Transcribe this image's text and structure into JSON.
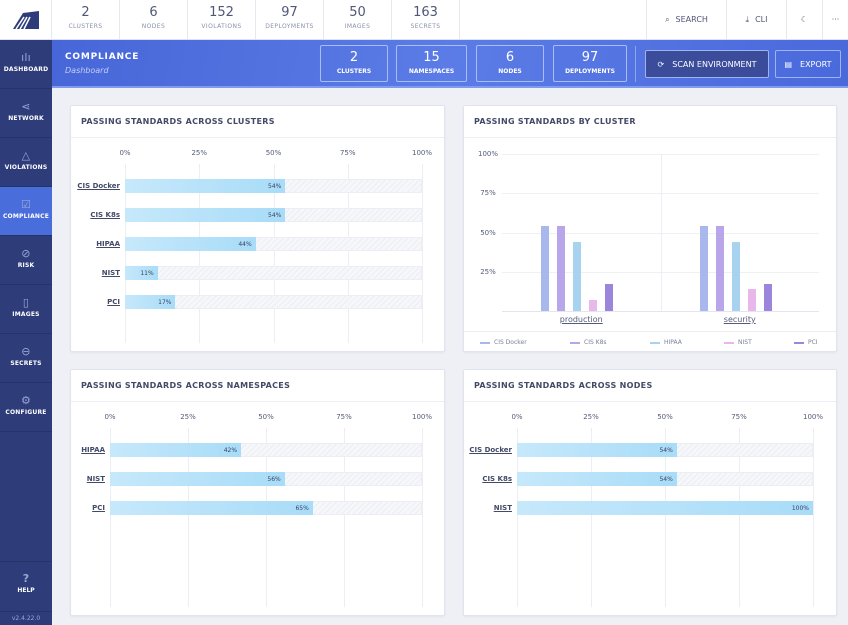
{
  "topbar": {
    "stats": [
      {
        "n": "2",
        "l": "CLUSTERS"
      },
      {
        "n": "6",
        "l": "NODES"
      },
      {
        "n": "152",
        "l": "VIOLATIONS"
      },
      {
        "n": "97",
        "l": "DEPLOYMENTS"
      },
      {
        "n": "50",
        "l": "IMAGES"
      },
      {
        "n": "163",
        "l": "SECRETS"
      }
    ],
    "search": "SEARCH",
    "cli": "CLI"
  },
  "sidebar": {
    "items": [
      {
        "label": "DASHBOARD",
        "icon": "bar-chart-icon"
      },
      {
        "label": "NETWORK",
        "icon": "share-icon"
      },
      {
        "label": "VIOLATIONS",
        "icon": "alert-triangle-icon"
      },
      {
        "label": "COMPLIANCE",
        "icon": "check-square-icon",
        "active": true
      },
      {
        "label": "RISK",
        "icon": "shield-off-icon"
      },
      {
        "label": "IMAGES",
        "icon": "file-icon"
      },
      {
        "label": "SECRETS",
        "icon": "lock-icon"
      },
      {
        "label": "CONFIGURE",
        "icon": "gear-icon"
      }
    ],
    "help": "HELP",
    "version": "v2.4.22.0"
  },
  "banner": {
    "title": "COMPLIANCE",
    "subtitle": "Dashboard",
    "stats": [
      {
        "n": "2",
        "l": "CLUSTERS"
      },
      {
        "n": "15",
        "l": "NAMESPACES"
      },
      {
        "n": "6",
        "l": "NODES"
      },
      {
        "n": "97",
        "l": "DEPLOYMENTS"
      }
    ],
    "scan": "SCAN ENVIRONMENT",
    "export": "EXPORT"
  },
  "colors": {
    "accent": "#4a6ddc",
    "sidebar": "#2e3d7a"
  },
  "chart_data": [
    {
      "type": "bar",
      "orientation": "horizontal",
      "title": "PASSING STANDARDS ACROSS CLUSTERS",
      "ticks": [
        "0%",
        "25%",
        "50%",
        "75%",
        "100%"
      ],
      "categories": [
        "CIS Docker",
        "CIS K8s",
        "HIPAA",
        "NIST",
        "PCI"
      ],
      "values": [
        54,
        54,
        44,
        11,
        17
      ],
      "labels": [
        "54%",
        "54%",
        "44%",
        "11%",
        "17%"
      ],
      "xlim": [
        0,
        100
      ]
    },
    {
      "type": "bar",
      "title": "PASSING STANDARDS BY CLUSTER",
      "ticks": [
        "100%",
        "75%",
        "50%",
        "25%"
      ],
      "categories": [
        "production",
        "security"
      ],
      "ylim": [
        0,
        100
      ],
      "legend": "bottom",
      "series": [
        {
          "name": "CIS Docker",
          "color": "#a9b8ec",
          "values": [
            54,
            54
          ]
        },
        {
          "name": "CIS K8s",
          "color": "#b9a6ea",
          "values": [
            54,
            54
          ]
        },
        {
          "name": "HIPAA",
          "color": "#a7d3f0",
          "values": [
            44,
            44
          ]
        },
        {
          "name": "NIST",
          "color": "#e8b8ea",
          "values": [
            7,
            14
          ]
        },
        {
          "name": "PCI",
          "color": "#9b86dc",
          "values": [
            17,
            17
          ]
        }
      ]
    },
    {
      "type": "bar",
      "orientation": "horizontal",
      "title": "PASSING STANDARDS ACROSS NAMESPACES",
      "ticks": [
        "0%",
        "25%",
        "50%",
        "75%",
        "100%"
      ],
      "categories": [
        "HIPAA",
        "NIST",
        "PCI"
      ],
      "values": [
        42,
        56,
        65
      ],
      "labels": [
        "42%",
        "56%",
        "65%"
      ],
      "xlim": [
        0,
        100
      ]
    },
    {
      "type": "bar",
      "orientation": "horizontal",
      "title": "PASSING STANDARDS ACROSS NODES",
      "ticks": [
        "0%",
        "25%",
        "50%",
        "75%",
        "100%"
      ],
      "categories": [
        "CIS Docker",
        "CIS K8s",
        "NIST"
      ],
      "values": [
        54,
        54,
        100
      ],
      "labels": [
        "54%",
        "54%",
        "100%"
      ],
      "xlim": [
        0,
        100
      ]
    }
  ]
}
